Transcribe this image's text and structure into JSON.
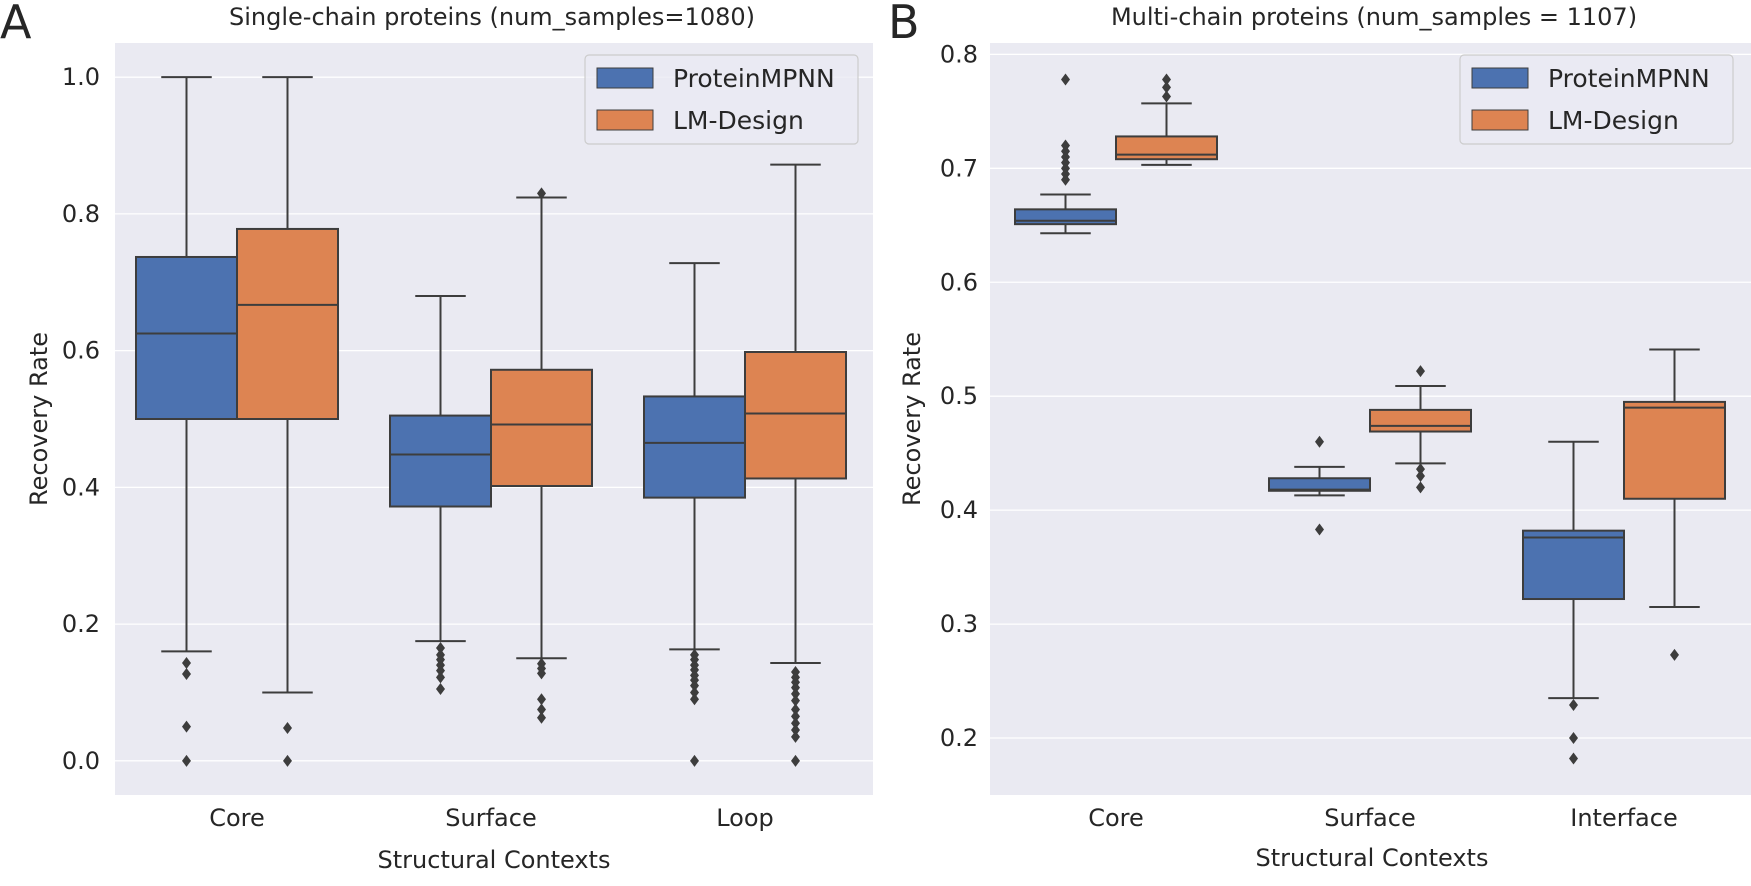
{
  "colors": {
    "plot_bg": "#EAEAF2",
    "grid": "#FFFFFF",
    "ProteinMPNN": "#4C72B0",
    "LM-Design": "#DD8452",
    "line": "#3D3D3D",
    "text": "#262626"
  },
  "chart_data": [
    {
      "panel_letter": "A",
      "type": "box",
      "title": "Single-chain proteins (num_samples=1080)",
      "xlabel": "Structural Contexts",
      "ylabel": "Recovery Rate",
      "categories": [
        "Core",
        "Surface",
        "Loop"
      ],
      "ylim": [
        -0.05,
        1.05
      ],
      "yticks": [
        0.0,
        0.2,
        0.4,
        0.6,
        0.8,
        1.0
      ],
      "ytick_labels": [
        "0.0",
        "0.2",
        "0.4",
        "0.6",
        "0.8",
        "1.0"
      ],
      "grid": true,
      "legend_position": "top-right",
      "series": [
        {
          "name": "ProteinMPNN",
          "boxes": [
            {
              "whislo": 0.16,
              "q1": 0.5,
              "med": 0.625,
              "q3": 0.737,
              "whishi": 1.0,
              "fliers": [
                0.143,
                0.127,
                0.05,
                0.0
              ]
            },
            {
              "whislo": 0.175,
              "q1": 0.372,
              "med": 0.448,
              "q3": 0.505,
              "whishi": 0.68,
              "fliers": [
                0.165,
                0.155,
                0.148,
                0.14,
                0.132,
                0.122,
                0.105
              ]
            },
            {
              "whislo": 0.163,
              "q1": 0.385,
              "med": 0.465,
              "q3": 0.533,
              "whishi": 0.728,
              "fliers": [
                0.155,
                0.148,
                0.14,
                0.133,
                0.125,
                0.118,
                0.11,
                0.1,
                0.09,
                0.0
              ]
            }
          ]
        },
        {
          "name": "LM-Design",
          "boxes": [
            {
              "whislo": 0.1,
              "q1": 0.5,
              "med": 0.667,
              "q3": 0.778,
              "whishi": 1.0,
              "fliers": [
                0.048,
                0.0
              ]
            },
            {
              "whislo": 0.15,
              "q1": 0.402,
              "med": 0.492,
              "q3": 0.572,
              "whishi": 0.824,
              "fliers": [
                0.83,
                0.142,
                0.135,
                0.128,
                0.09,
                0.075,
                0.063
              ]
            },
            {
              "whislo": 0.143,
              "q1": 0.413,
              "med": 0.508,
              "q3": 0.598,
              "whishi": 0.872,
              "fliers": [
                0.13,
                0.122,
                0.115,
                0.107,
                0.098,
                0.088,
                0.075,
                0.065,
                0.055,
                0.045,
                0.035,
                0.0
              ]
            }
          ]
        }
      ]
    },
    {
      "panel_letter": "B",
      "type": "box",
      "title": "Multi-chain proteins (num_samples = 1107)",
      "xlabel": "Structural Contexts",
      "ylabel": "Recovery Rate",
      "categories": [
        "Core",
        "Surface",
        "Interface"
      ],
      "ylim": [
        0.15,
        0.81
      ],
      "yticks": [
        0.2,
        0.3,
        0.4,
        0.5,
        0.6,
        0.7,
        0.8
      ],
      "ytick_labels": [
        "0.2",
        "0.3",
        "0.4",
        "0.5",
        "0.6",
        "0.7",
        "0.8"
      ],
      "grid": true,
      "legend_position": "top-right",
      "series": [
        {
          "name": "ProteinMPNN",
          "boxes": [
            {
              "whislo": 0.643,
              "q1": 0.651,
              "med": 0.654,
              "q3": 0.664,
              "whishi": 0.677,
              "fliers": [
                0.778,
                0.72,
                0.715,
                0.71,
                0.705,
                0.7,
                0.695,
                0.69
              ]
            },
            {
              "whislo": 0.413,
              "q1": 0.417,
              "med": 0.418,
              "q3": 0.428,
              "whishi": 0.438,
              "fliers": [
                0.46,
                0.383
              ]
            },
            {
              "whislo": 0.235,
              "q1": 0.322,
              "med": 0.376,
              "q3": 0.382,
              "whishi": 0.46,
              "fliers": [
                0.229,
                0.2,
                0.182
              ]
            }
          ]
        },
        {
          "name": "LM-Design",
          "boxes": [
            {
              "whislo": 0.703,
              "q1": 0.708,
              "med": 0.712,
              "q3": 0.728,
              "whishi": 0.757,
              "fliers": [
                0.778,
                0.771,
                0.763
              ]
            },
            {
              "whislo": 0.441,
              "q1": 0.469,
              "med": 0.474,
              "q3": 0.488,
              "whishi": 0.509,
              "fliers": [
                0.522,
                0.436,
                0.43,
                0.42
              ]
            },
            {
              "whislo": 0.315,
              "q1": 0.41,
              "med": 0.49,
              "q3": 0.495,
              "whishi": 0.541,
              "fliers": [
                0.273
              ]
            }
          ]
        }
      ]
    }
  ]
}
